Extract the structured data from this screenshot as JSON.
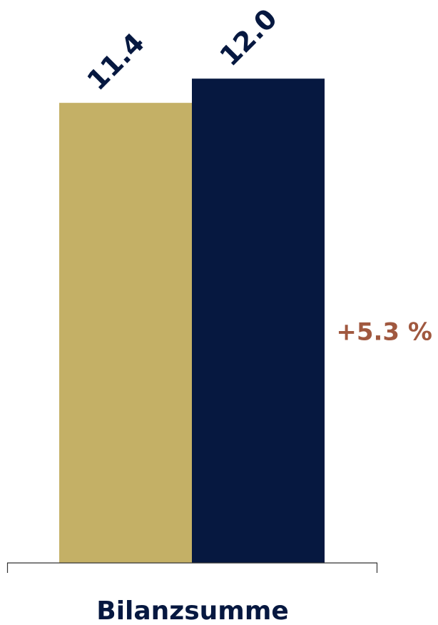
{
  "chart_data": {
    "type": "bar",
    "categories": [
      "Bilanzsumme"
    ],
    "series": [
      {
        "values": [
          11.4
        ],
        "color": "#c4b066"
      },
      {
        "values": [
          12.0
        ],
        "color": "#061840"
      }
    ],
    "value_labels": [
      "11.4",
      "12.0"
    ],
    "change_label": "+5.3 %",
    "ylim": [
      0,
      12.87
    ],
    "grid": false,
    "colors": {
      "value_label": "#061840",
      "change_label": "#a0583f",
      "category_label": "#061840",
      "axis": "#333333"
    }
  }
}
